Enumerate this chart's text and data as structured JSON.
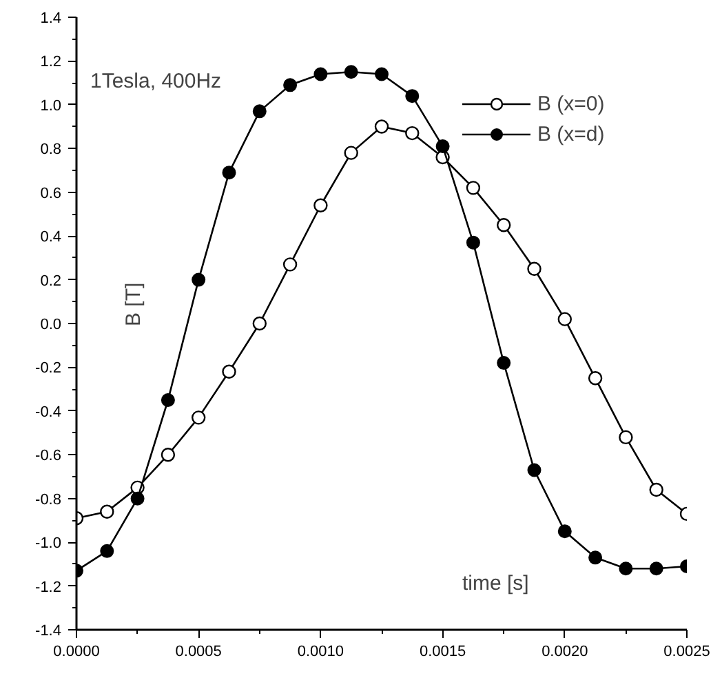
{
  "chart_data": {
    "type": "line",
    "title": "1Tesla, 400Hz",
    "xlabel": "time [s]",
    "ylabel": "B [T]",
    "x": [
      0,
      0.000125,
      0.00025,
      0.000375,
      0.0005,
      0.000625,
      0.00075,
      0.000875,
      0.001,
      0.001125,
      0.00125,
      0.001375,
      0.0015,
      0.001625,
      0.00175,
      0.001875,
      0.002,
      0.002125,
      0.00225,
      0.002375,
      0.0025
    ],
    "series": [
      {
        "name": "B (x=0)",
        "color": "#000000",
        "marker": "open_circle",
        "values": [
          -0.89,
          -0.86,
          -0.75,
          -0.6,
          -0.43,
          -0.22,
          0.0,
          0.27,
          0.54,
          0.78,
          0.9,
          0.87,
          0.76,
          0.62,
          0.45,
          0.25,
          0.02,
          -0.25,
          -0.52,
          -0.76,
          -0.87
        ]
      },
      {
        "name": "B (x=d)",
        "color": "#000000",
        "marker": "circle",
        "values": [
          -1.13,
          -1.04,
          -0.8,
          -0.35,
          0.2,
          0.69,
          0.97,
          1.09,
          1.14,
          1.15,
          1.14,
          1.04,
          0.81,
          0.37,
          -0.18,
          -0.67,
          -0.95,
          -1.07,
          -1.12,
          -1.12,
          -1.11
        ]
      }
    ],
    "xlim": [
      0,
      0.0025
    ],
    "ylim": [
      -1.4,
      1.4
    ],
    "xticks": [
      {
        "value": 0,
        "label": "0.0000"
      },
      {
        "value": 0.0005,
        "label": "0.0005"
      },
      {
        "value": 0.001,
        "label": "0.0010"
      },
      {
        "value": 0.0015,
        "label": "0.0015"
      },
      {
        "value": 0.002,
        "label": "0.0020"
      },
      {
        "value": 0.0025,
        "label": "0.0025"
      }
    ],
    "yticks": [
      {
        "value": -1.4,
        "label": "-1.4"
      },
      {
        "value": -1.2,
        "label": "-1.2"
      },
      {
        "value": -1.0,
        "label": "-1.0"
      },
      {
        "value": -0.8,
        "label": "-0.8"
      },
      {
        "value": -0.6,
        "label": "-0.6"
      },
      {
        "value": -0.4,
        "label": "-0.4"
      },
      {
        "value": -0.2,
        "label": "-0.2"
      },
      {
        "value": 0,
        "label": "0.0"
      },
      {
        "value": 0.2,
        "label": "0.2"
      },
      {
        "value": 0.4,
        "label": "0.4"
      },
      {
        "value": 0.6,
        "label": "0.6"
      },
      {
        "value": 0.8,
        "label": "0.8"
      },
      {
        "value": 1.0,
        "label": "1.0"
      },
      {
        "value": 1.2,
        "label": "1.2"
      },
      {
        "value": 1.4,
        "label": "1.4"
      }
    ],
    "grid": false,
    "legend": "top right",
    "line_style": "solid"
  }
}
